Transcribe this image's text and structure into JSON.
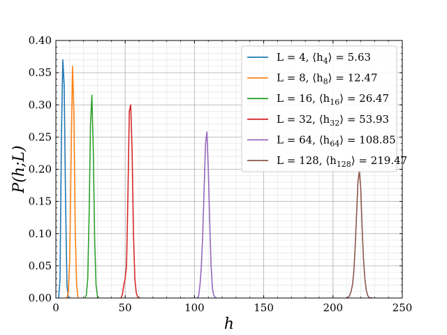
{
  "chart_data": {
    "type": "line",
    "xlabel": "h",
    "ylabel": "P(h;L)",
    "xlim": [
      0,
      250
    ],
    "ylim": [
      0,
      0.4
    ],
    "xticks": [
      0,
      50,
      100,
      150,
      200,
      250
    ],
    "yticks": [
      0.0,
      0.05,
      0.1,
      0.15,
      0.2,
      0.25,
      0.3,
      0.35,
      0.4
    ],
    "xtick_labels": [
      "0",
      "50",
      "100",
      "150",
      "200",
      "250"
    ],
    "ytick_labels": [
      "0.00",
      "0.05",
      "0.10",
      "0.15",
      "0.20",
      "0.25",
      "0.30",
      "0.35",
      "0.40"
    ],
    "grid": true,
    "legend_position": "top-right",
    "series": [
      {
        "name": "L = 4, ⟨h4⟩ = 5.63",
        "color": "#1f77b4",
        "x": [
          2,
          3,
          4,
          5,
          6,
          7,
          8,
          9
        ],
        "y": [
          0.0,
          0.03,
          0.25,
          0.37,
          0.33,
          0.15,
          0.02,
          0.0
        ]
      },
      {
        "name": "L = 8, ⟨h8⟩ = 12.47",
        "color": "#ff7f0e",
        "x": [
          8,
          9,
          10,
          11,
          12,
          13,
          14,
          15,
          16
        ],
        "y": [
          0.0,
          0.01,
          0.06,
          0.22,
          0.36,
          0.29,
          0.1,
          0.02,
          0.0
        ]
      },
      {
        "name": "L = 16, ⟨h16⟩ = 26.47",
        "color": "#2ca02c",
        "x": [
          21,
          22,
          23,
          24,
          25,
          26,
          27,
          28,
          29,
          30,
          31
        ],
        "y": [
          0.0,
          0.005,
          0.03,
          0.13,
          0.27,
          0.315,
          0.23,
          0.09,
          0.02,
          0.003,
          0.0
        ]
      },
      {
        "name": "L = 32, ⟨h32⟩ = 53.93",
        "color": "#d62728",
        "x": [
          47,
          48,
          49,
          50,
          51,
          52,
          53,
          54,
          55,
          56,
          57,
          58,
          59,
          60
        ],
        "y": [
          0.0,
          0.005,
          0.02,
          0.03,
          0.05,
          0.16,
          0.29,
          0.3,
          0.23,
          0.1,
          0.03,
          0.008,
          0.002,
          0.0
        ]
      },
      {
        "name": "L = 64, ⟨h64⟩ = 108.85",
        "color": "#9467bd",
        "x": [
          102,
          103,
          104,
          105,
          106,
          107,
          108,
          109,
          110,
          111,
          112,
          113,
          114,
          115,
          116
        ],
        "y": [
          0.0,
          0.003,
          0.02,
          0.05,
          0.1,
          0.17,
          0.24,
          0.258,
          0.2,
          0.12,
          0.05,
          0.015,
          0.004,
          0.001,
          0.0
        ]
      },
      {
        "name": "L = 128, ⟨h128⟩ = 219.47",
        "color": "#8c564b",
        "x": [
          210,
          211,
          212,
          213,
          214,
          215,
          216,
          217,
          218,
          219,
          220,
          221,
          222,
          223,
          224,
          225,
          226,
          227,
          228
        ],
        "y": [
          0.0,
          0.001,
          0.004,
          0.01,
          0.02,
          0.04,
          0.08,
          0.13,
          0.18,
          0.198,
          0.17,
          0.11,
          0.06,
          0.03,
          0.012,
          0.004,
          0.001,
          0.0,
          0.0
        ]
      }
    ],
    "legend": [
      {
        "main": "L = 4, ⟨h",
        "sub": "4",
        "tail": "⟩ = 5.63"
      },
      {
        "main": "L = 8, ⟨h",
        "sub": "8",
        "tail": "⟩ = 12.47"
      },
      {
        "main": "L = 16, ⟨h",
        "sub": "16",
        "tail": "⟩ = 26.47"
      },
      {
        "main": "L = 32, ⟨h",
        "sub": "32",
        "tail": "⟩ = 53.93"
      },
      {
        "main": "L = 64, ⟨h",
        "sub": "64",
        "tail": "⟩ = 108.85"
      },
      {
        "main": "L = 128, ⟨h",
        "sub": "128",
        "tail": "⟩ = 219.47"
      }
    ]
  }
}
